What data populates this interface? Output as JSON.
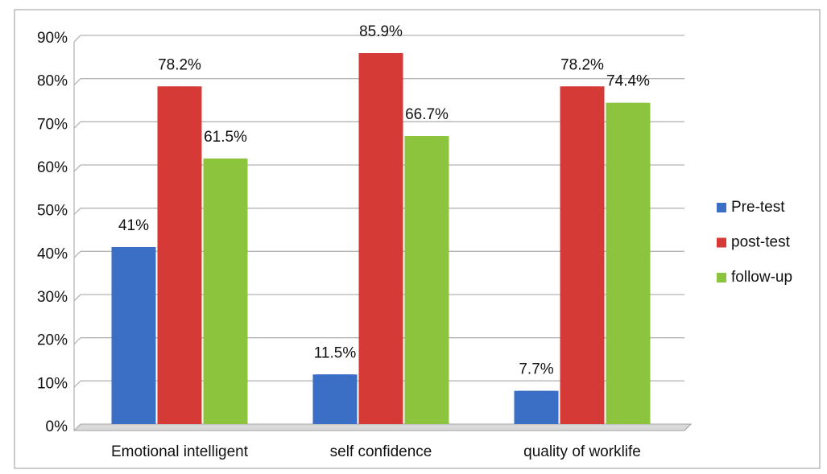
{
  "chart_data": {
    "type": "bar",
    "categories": [
      "Emotional intelligent",
      "self confidence",
      "quality of worklife"
    ],
    "series": [
      {
        "name": "Pre-test",
        "color": "#3b6fc6",
        "values": [
          41,
          11.5,
          7.7
        ],
        "value_labels": [
          "41%",
          "11.5%",
          "7.7%"
        ]
      },
      {
        "name": "post-test",
        "color": "#d63a36",
        "values": [
          78.2,
          85.9,
          78.2
        ],
        "value_labels": [
          "78.2%",
          "85.9%",
          "78.2%"
        ]
      },
      {
        "name": "follow-up",
        "color": "#8cc43d",
        "values": [
          61.5,
          66.7,
          74.4
        ],
        "value_labels": [
          "61.5%",
          "66.7%",
          "74.4%"
        ]
      }
    ],
    "ylim": [
      0,
      90
    ],
    "yticks": [
      {
        "value": 0,
        "label": "0%"
      },
      {
        "value": 10,
        "label": "10%"
      },
      {
        "value": 20,
        "label": "20%"
      },
      {
        "value": 30,
        "label": "30%"
      },
      {
        "value": 40,
        "label": "40%"
      },
      {
        "value": 50,
        "label": "50%"
      },
      {
        "value": 60,
        "label": "60%"
      },
      {
        "value": 70,
        "label": "70%"
      },
      {
        "value": 80,
        "label": "80%"
      },
      {
        "value": 90,
        "label": "90%"
      }
    ],
    "grid": true,
    "legend": "right"
  }
}
